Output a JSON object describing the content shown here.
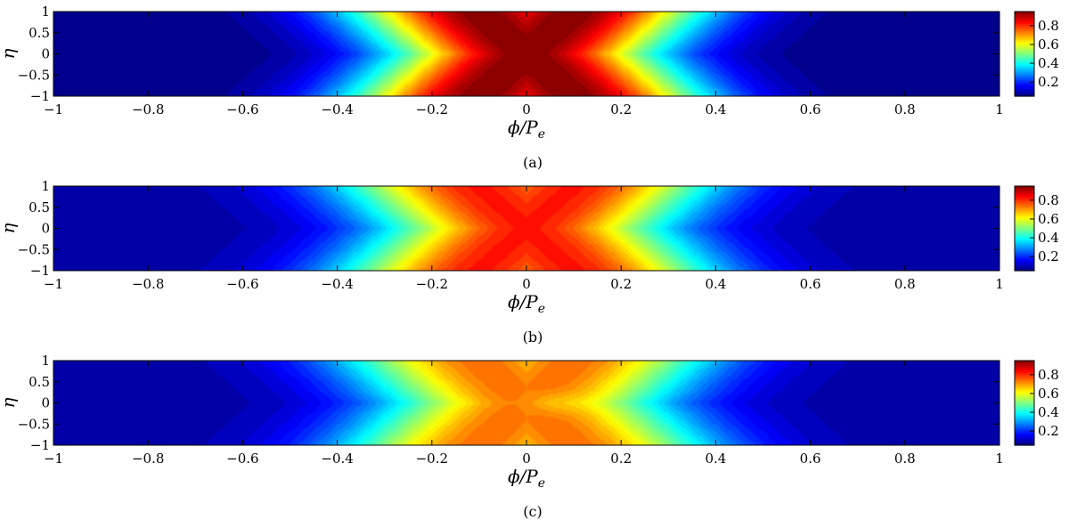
{
  "chart_data": [
    {
      "type": "heatmap",
      "caption": "(a)",
      "xlabel": "ϕ/P",
      "xlabel_sub": "e",
      "ylabel": "η",
      "xlim": [
        -1,
        1
      ],
      "ylim": [
        -1,
        1
      ],
      "xticks": [
        "−1",
        "−0.8",
        "−0.6",
        "−0.4",
        "−0.2",
        "0",
        "0.2",
        "0.4",
        "0.6",
        "0.8",
        "1"
      ],
      "yticks": [
        "1",
        "0.5",
        "0",
        "−0.5",
        "−1"
      ],
      "colorbar": {
        "colormap": "jet",
        "range": [
          0.05,
          0.95
        ],
        "ticks": [
          "0.8",
          "0.6",
          "0.4",
          "0.2"
        ]
      },
      "peak": 0.95,
      "baseline": 0.05,
      "width": 0.28,
      "shift": 0.1,
      "dip": 0
    },
    {
      "type": "heatmap",
      "caption": "(b)",
      "xlabel": "ϕ/P",
      "xlabel_sub": "e",
      "ylabel": "η",
      "xlim": [
        -1,
        1
      ],
      "ylim": [
        -1,
        1
      ],
      "xticks": [
        "−1",
        "−0.8",
        "−0.6",
        "−0.4",
        "−0.2",
        "0",
        "0.2",
        "0.4",
        "0.6",
        "0.8",
        "1"
      ],
      "yticks": [
        "1",
        "0.5",
        "0",
        "−0.5",
        "−1"
      ],
      "colorbar": {
        "colormap": "jet",
        "range": [
          0.05,
          0.95
        ],
        "ticks": [
          "0.8",
          "0.6",
          "0.4",
          "0.2"
        ]
      },
      "peak": 0.82,
      "baseline": 0.08,
      "width": 0.3,
      "shift": 0.1,
      "dip": 0
    },
    {
      "type": "heatmap",
      "caption": "(c)",
      "xlabel": "ϕ/P",
      "xlabel_sub": "e",
      "ylabel": "η",
      "xlim": [
        -1,
        1
      ],
      "ylim": [
        -1,
        1
      ],
      "xticks": [
        "−1",
        "−0.8",
        "−0.6",
        "−0.4",
        "−0.2",
        "0",
        "0.2",
        "0.4",
        "0.6",
        "0.8",
        "1"
      ],
      "yticks": [
        "1",
        "0.5",
        "0",
        "−0.5",
        "−1"
      ],
      "colorbar": {
        "colormap": "jet",
        "range": [
          0.05,
          0.95
        ],
        "ticks": [
          "0.8",
          "0.6",
          "0.4",
          "0.2"
        ]
      },
      "peak": 0.74,
      "baseline": 0.08,
      "width": 0.3,
      "shift": 0.1,
      "dip": 0.05
    }
  ]
}
